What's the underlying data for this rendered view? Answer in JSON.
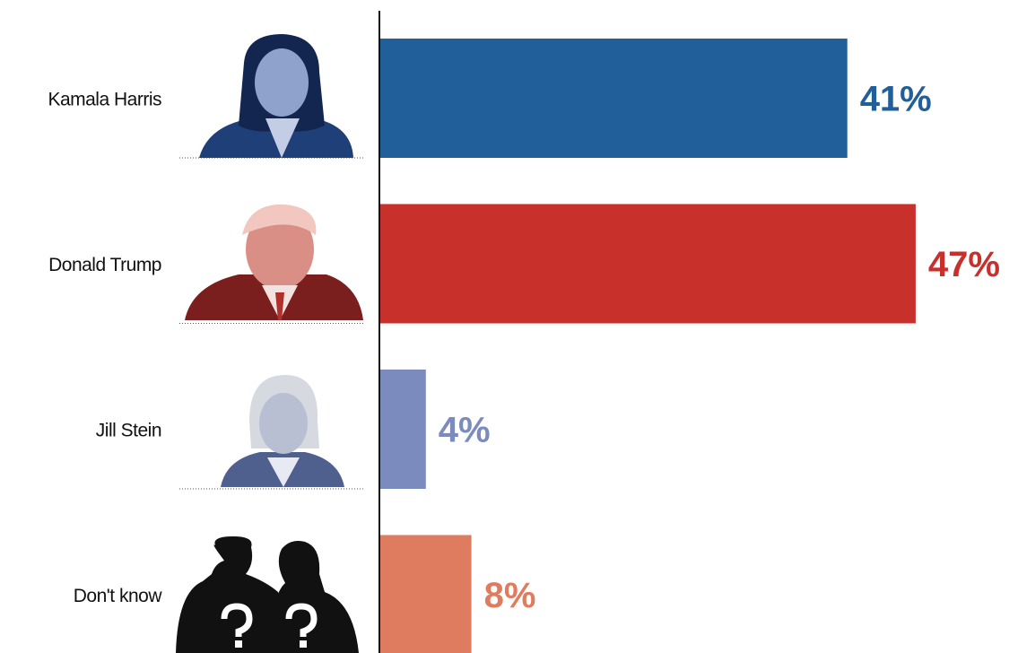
{
  "chart_data": {
    "type": "bar",
    "orientation": "horizontal",
    "categories": [
      "Kamala Harris",
      "Donald Trump",
      "Jill Stein",
      "Don't know"
    ],
    "values": [
      41,
      47,
      4,
      8
    ],
    "value_labels": [
      "41%",
      "47%",
      "4%",
      "8%"
    ],
    "colors": [
      "#215f9a",
      "#c8302b",
      "#7b8bbd",
      "#df7b5e"
    ]
  }
}
